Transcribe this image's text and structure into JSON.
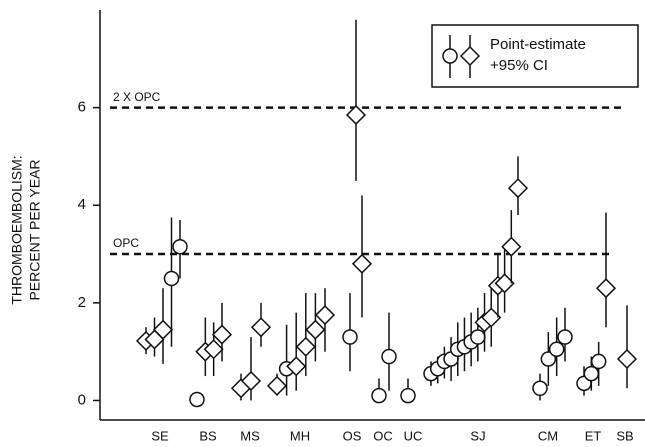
{
  "chart_data": {
    "type": "errorbar",
    "y_label": [
      "THROMBOEMBOLISM:",
      "PERCENT PER YEAR"
    ],
    "ylim": [
      -0.4,
      8
    ],
    "yticks": [
      0,
      2,
      4,
      6
    ],
    "legend": {
      "text": [
        "Point-estimate",
        "+95% CI"
      ],
      "position": "upper right"
    },
    "reference_lines": [
      {
        "label": "OPC",
        "value": 3
      },
      {
        "label": "2 X OPC",
        "value": 6
      }
    ],
    "groups": [
      {
        "label": "SE",
        "points": [
          {
            "marker": "diamond",
            "value": 1.22,
            "lower": 0.95,
            "upper": 1.5
          },
          {
            "marker": "diamond",
            "value": 1.25,
            "lower": 0.9,
            "upper": 1.7
          },
          {
            "marker": "diamond",
            "value": 1.45,
            "lower": 0.75,
            "upper": 2.3
          },
          {
            "marker": "circle",
            "value": 2.5,
            "lower": 1.1,
            "upper": 3.75
          },
          {
            "marker": "circle",
            "value": 3.15,
            "lower": 2.5,
            "upper": 3.7
          }
        ]
      },
      {
        "label": "BS",
        "points": [
          {
            "marker": "circle",
            "value": 0.02,
            "lower": 0.02,
            "upper": 0.02
          },
          {
            "marker": "diamond",
            "value": 1.0,
            "lower": 0.5,
            "upper": 1.7
          },
          {
            "marker": "diamond",
            "value": 1.05,
            "lower": 0.5,
            "upper": 1.6
          },
          {
            "marker": "diamond",
            "value": 1.35,
            "lower": 0.8,
            "upper": 2.0
          }
        ]
      },
      {
        "label": "MS",
        "points": [
          {
            "marker": "diamond",
            "value": 0.25,
            "lower": 0.0,
            "upper": 0.55
          },
          {
            "marker": "diamond",
            "value": 0.4,
            "lower": 0.0,
            "upper": 1.3
          },
          {
            "marker": "diamond",
            "value": 1.5,
            "lower": 1.1,
            "upper": 2.0
          }
        ]
      },
      {
        "label": "MH",
        "points": [
          {
            "marker": "diamond",
            "value": 0.3,
            "lower": 0.1,
            "upper": 0.55
          },
          {
            "marker": "circle",
            "value": 0.65,
            "lower": 0.1,
            "upper": 1.55
          },
          {
            "marker": "diamond",
            "value": 0.7,
            "lower": 0.2,
            "upper": 1.8
          },
          {
            "marker": "diamond",
            "value": 1.1,
            "lower": 0.5,
            "upper": 2.2
          },
          {
            "marker": "diamond",
            "value": 1.45,
            "lower": 0.8,
            "upper": 2.2
          },
          {
            "marker": "diamond",
            "value": 1.75,
            "lower": 1.0,
            "upper": 2.3
          }
        ]
      },
      {
        "label": "OS",
        "points": [
          {
            "marker": "circle",
            "value": 1.3,
            "lower": 0.6,
            "upper": 2.2
          },
          {
            "marker": "diamond",
            "value": 5.85,
            "lower": 4.5,
            "upper": 7.8
          },
          {
            "marker": "diamond",
            "value": 2.8,
            "lower": 1.7,
            "upper": 4.2
          }
        ]
      },
      {
        "label": "OC",
        "points": [
          {
            "marker": "circle",
            "value": 0.1,
            "lower": 0.0,
            "upper": 0.45
          },
          {
            "marker": "circle",
            "value": 0.9,
            "lower": 0.2,
            "upper": 1.8
          }
        ]
      },
      {
        "label": "UC",
        "points": [
          {
            "marker": "circle",
            "value": 0.1,
            "lower": 0.0,
            "upper": 0.45
          }
        ]
      },
      {
        "label": "SJ",
        "points": [
          {
            "marker": "circle",
            "value": 0.55,
            "lower": 0.3,
            "upper": 0.8
          },
          {
            "marker": "circle",
            "value": 0.65,
            "lower": 0.35,
            "upper": 0.9
          },
          {
            "marker": "circle",
            "value": 0.8,
            "lower": 0.45,
            "upper": 1.1
          },
          {
            "marker": "circle",
            "value": 0.85,
            "lower": 0.4,
            "upper": 1.3
          },
          {
            "marker": "circle",
            "value": 1.05,
            "lower": 0.5,
            "upper": 1.6
          },
          {
            "marker": "circle",
            "value": 1.1,
            "lower": 0.6,
            "upper": 1.7
          },
          {
            "marker": "circle",
            "value": 1.2,
            "lower": 0.7,
            "upper": 1.8
          },
          {
            "marker": "circle",
            "value": 1.3,
            "lower": 0.8,
            "upper": 1.9
          },
          {
            "marker": "diamond",
            "value": 1.6,
            "lower": 1.0,
            "upper": 2.2
          },
          {
            "marker": "diamond",
            "value": 1.7,
            "lower": 1.1,
            "upper": 2.4
          },
          {
            "marker": "diamond",
            "value": 2.35,
            "lower": 1.7,
            "upper": 3.0
          },
          {
            "marker": "diamond",
            "value": 2.4,
            "lower": 1.8,
            "upper": 3.1
          },
          {
            "marker": "diamond",
            "value": 3.15,
            "lower": 2.4,
            "upper": 3.9
          },
          {
            "marker": "diamond",
            "value": 4.35,
            "lower": 3.8,
            "upper": 5.0
          }
        ]
      },
      {
        "label": "CM",
        "points": [
          {
            "marker": "circle",
            "value": 0.25,
            "lower": 0.0,
            "upper": 0.55
          },
          {
            "marker": "circle",
            "value": 0.85,
            "lower": 0.3,
            "upper": 1.4
          },
          {
            "marker": "circle",
            "value": 1.05,
            "lower": 0.5,
            "upper": 1.7
          },
          {
            "marker": "circle",
            "value": 1.3,
            "lower": 0.8,
            "upper": 1.9
          }
        ]
      },
      {
        "label": "ET",
        "points": [
          {
            "marker": "circle",
            "value": 0.35,
            "lower": 0.1,
            "upper": 0.7
          },
          {
            "marker": "circle",
            "value": 0.55,
            "lower": 0.2,
            "upper": 0.9
          },
          {
            "marker": "circle",
            "value": 0.8,
            "lower": 0.3,
            "upper": 1.2
          },
          {
            "marker": "diamond",
            "value": 2.3,
            "lower": 1.5,
            "upper": 3.85
          }
        ]
      },
      {
        "label": "SB",
        "points": [
          {
            "marker": "diamond",
            "value": 0.85,
            "lower": 0.25,
            "upper": 1.95
          }
        ]
      }
    ]
  }
}
